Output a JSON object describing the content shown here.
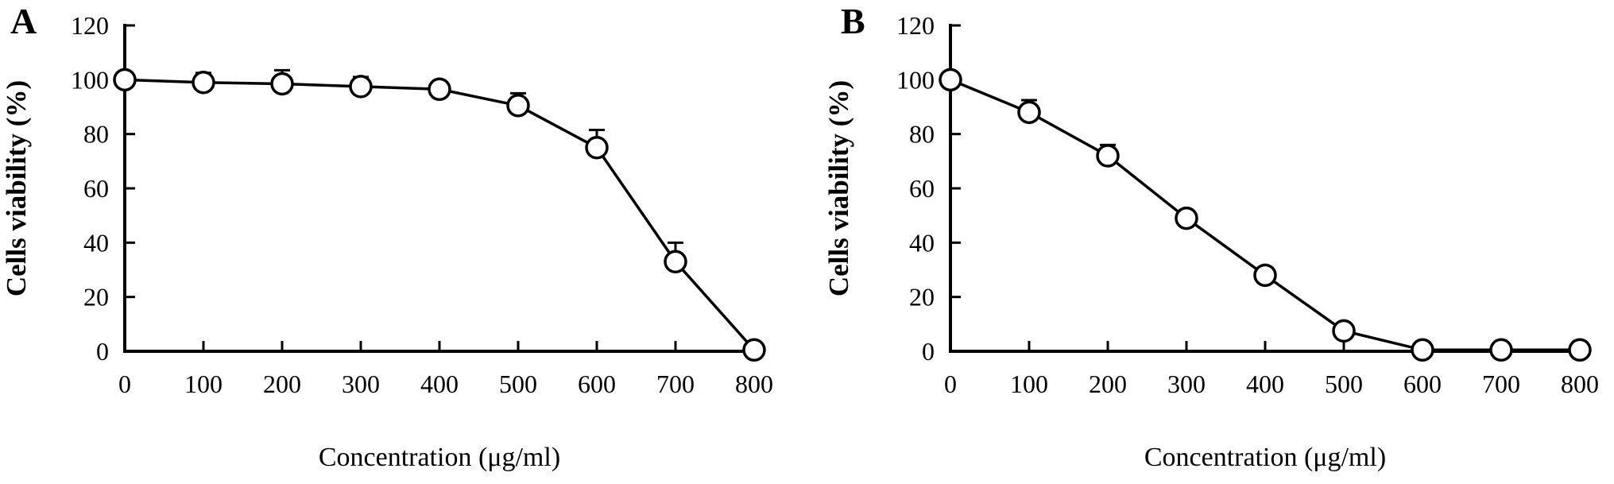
{
  "ink_color": "#000000",
  "marker_fill_color": "#ffffff",
  "chart_data": [
    {
      "type": "line",
      "panel_label": "A",
      "title": "",
      "xlabel": "Concentration (μg/ml)",
      "ylabel": "Cells viability (%)",
      "marker": "open-circle",
      "grid": false,
      "legend": "none",
      "xlim": [
        0,
        800
      ],
      "ylim": [
        0,
        120
      ],
      "xticks": [
        0,
        100,
        200,
        300,
        400,
        500,
        600,
        700,
        800
      ],
      "yticks": [
        0,
        20,
        40,
        60,
        80,
        100,
        120
      ],
      "x": [
        0,
        100,
        200,
        300,
        400,
        500,
        600,
        700,
        800
      ],
      "y": [
        100,
        99,
        98.5,
        97.5,
        96.5,
        90.5,
        75,
        33,
        0.5
      ],
      "error_plus": [
        0,
        3.5,
        5,
        3.5,
        1.5,
        4.5,
        6.5,
        7,
        0
      ]
    },
    {
      "type": "line",
      "panel_label": "B",
      "title": "",
      "xlabel": "Concentration (μg/ml)",
      "ylabel": "Cells viability (%)",
      "marker": "open-circle",
      "grid": false,
      "legend": "none",
      "xlim": [
        0,
        800
      ],
      "ylim": [
        0,
        120
      ],
      "xticks": [
        0,
        100,
        200,
        300,
        400,
        500,
        600,
        700,
        800
      ],
      "yticks": [
        0,
        20,
        40,
        60,
        80,
        100,
        120
      ],
      "x": [
        0,
        100,
        200,
        300,
        400,
        500,
        600,
        700,
        800
      ],
      "y": [
        100,
        88,
        72,
        49,
        28,
        7.5,
        0.5,
        0.5,
        0.5
      ],
      "error_plus": [
        0,
        4.5,
        4,
        2.5,
        1.5,
        1.5,
        0,
        0,
        0
      ]
    }
  ]
}
